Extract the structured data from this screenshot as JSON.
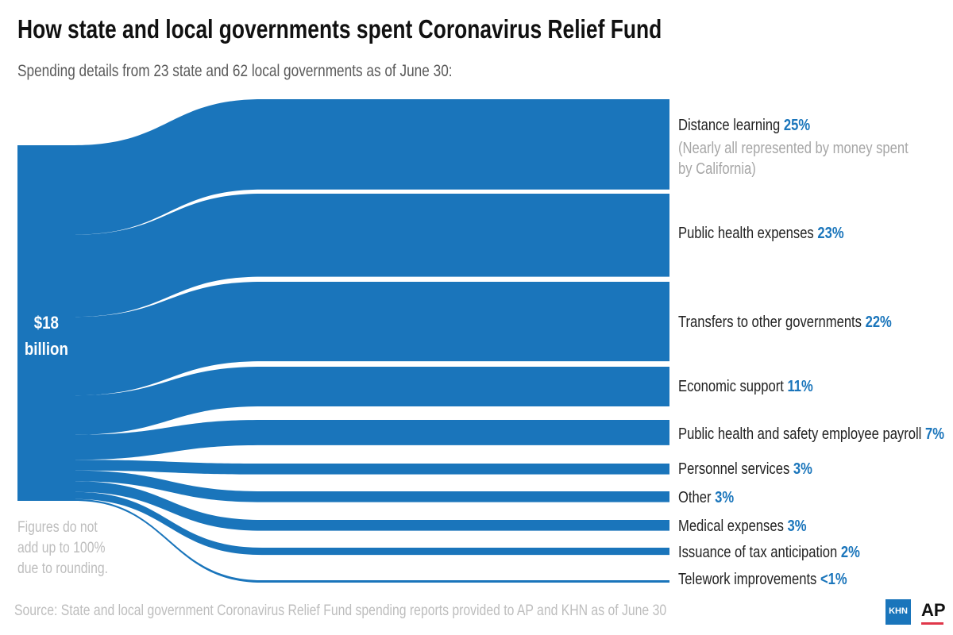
{
  "title": "How state and local governments spent Coronavirus Relief Fund",
  "subtitle": "Spending details from 23 state and 62 local governments as of June 30:",
  "total": {
    "line1": "$18",
    "line2": "billion"
  },
  "note": [
    "Figures do not",
    "add up to 100%",
    "due to rounding."
  ],
  "source": "Source: State and local government Coronavirus Relief Fund spending reports provided to AP and KHN as of June 30",
  "logos": {
    "khn": "KHN",
    "ap": "AP"
  },
  "colors": {
    "flow": "#1a75bb",
    "accent": "#1a75bb"
  },
  "chart_data": {
    "type": "sankey",
    "title": "How state and local governments spent Coronavirus Relief Fund",
    "source_node": "$18 billion",
    "categories": [
      "Distance learning",
      "Public health expenses",
      "Transfers to other governments",
      "Economic support",
      "Public health and safety employee payroll",
      "Personnel services",
      "Other",
      "Medical expenses",
      "Issuance of tax anticipation",
      "Telework improvements"
    ],
    "labels": [
      "25%",
      "23%",
      "22%",
      "11%",
      "7%",
      "3%",
      "3%",
      "3%",
      "2%",
      "<1%"
    ],
    "values": [
      25,
      23,
      22,
      11,
      7,
      3,
      3,
      3,
      2,
      0.5
    ],
    "annotations": [
      "(Nearly all represented by money spent",
      "by California)"
    ]
  }
}
